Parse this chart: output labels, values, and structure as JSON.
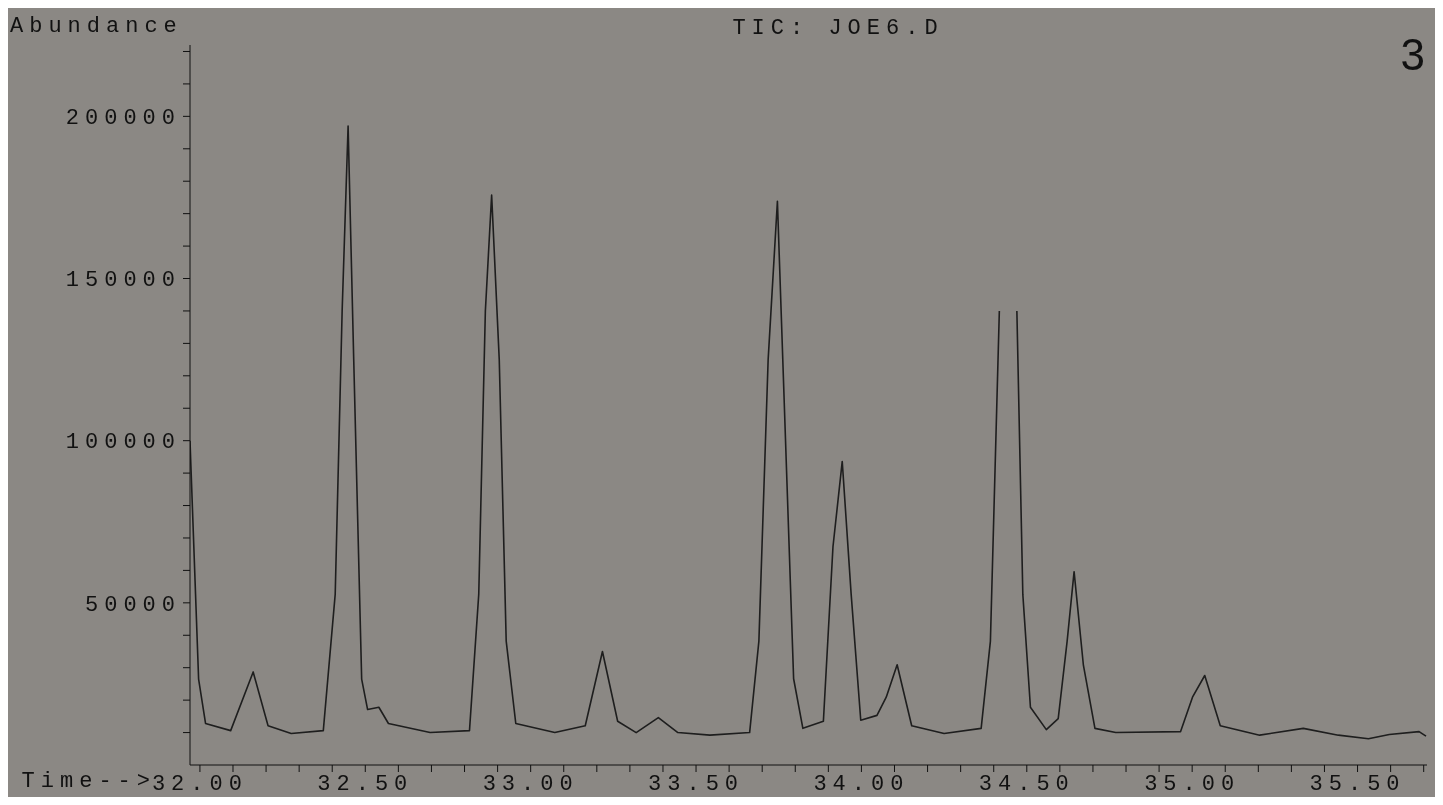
{
  "chart_data": {
    "type": "line",
    "title": "TIC: JOE6.D",
    "ylabel": "Abundance",
    "xlabel": "Time-->",
    "annotations": [
      "3"
    ],
    "color": "#1e1e1e",
    "marker": "none",
    "line_style": "solid",
    "x": [
      31.97,
      31.996,
      32.017,
      32.093,
      32.161,
      32.206,
      32.276,
      32.373,
      32.409,
      32.43,
      32.448,
      32.465,
      32.489,
      32.507,
      32.541,
      32.57,
      32.696,
      32.815,
      32.843,
      32.863,
      32.882,
      32.905,
      32.926,
      32.955,
      33.073,
      33.165,
      33.217,
      33.263,
      33.319,
      33.386,
      33.445,
      33.542,
      33.662,
      33.69,
      33.718,
      33.746,
      33.767,
      33.795,
      33.823,
      33.885,
      33.914,
      33.942,
      33.969,
      33.998,
      34.047,
      34.075,
      34.108,
      34.152,
      34.25,
      34.362,
      34.39,
      34.417,
      34.432,
      34.462,
      34.47,
      34.482,
      34.488,
      34.511,
      34.559,
      34.595,
      34.622,
      34.643,
      34.671,
      34.706,
      34.769,
      34.965,
      35.001,
      35.038,
      35.085,
      35.204,
      35.336,
      35.442,
      35.533,
      35.596,
      35.686,
      35.707
    ],
    "values": [
      100000,
      26500,
      12800,
      10600,
      28700,
      12100,
      9700,
      10600,
      52600,
      140000,
      197000,
      125000,
      26500,
      17100,
      17800,
      12800,
      10000,
      10600,
      52600,
      140000,
      175700,
      125000,
      38200,
      12800,
      10000,
      12100,
      35000,
      13500,
      10000,
      14600,
      10000,
      9200,
      10000,
      38200,
      125000,
      173800,
      110700,
      26600,
      11300,
      13500,
      67300,
      93600,
      52600,
      13800,
      15300,
      20900,
      30900,
      12100,
      9700,
      11300,
      38200,
      140000,
      null,
      null,
      140000,
      81700,
      52600,
      17800,
      10900,
      14300,
      38200,
      59600,
      30900,
      11300,
      10000,
      10300,
      20900,
      27600,
      12100,
      9200,
      11300,
      9200,
      8100,
      9400,
      10300,
      8900
    ],
    "xlim": [
      31.97,
      35.71
    ],
    "ylim": [
      0,
      222000
    ],
    "xticks": [
      {
        "value": 32,
        "label": "32.00"
      },
      {
        "value": 32.1,
        "label": null
      },
      {
        "value": 32.2,
        "label": null
      },
      {
        "value": 32.3,
        "label": null
      },
      {
        "value": 32.4,
        "label": null
      },
      {
        "value": 32.5,
        "label": "32.50"
      },
      {
        "value": 32.6,
        "label": null
      },
      {
        "value": 32.7,
        "label": null
      },
      {
        "value": 32.8,
        "label": null
      },
      {
        "value": 32.9,
        "label": null
      },
      {
        "value": 33,
        "label": "33.00"
      },
      {
        "value": 33.1,
        "label": null
      },
      {
        "value": 33.2,
        "label": null
      },
      {
        "value": 33.3,
        "label": null
      },
      {
        "value": 33.4,
        "label": null
      },
      {
        "value": 33.5,
        "label": "33.50"
      },
      {
        "value": 33.6,
        "label": null
      },
      {
        "value": 33.7,
        "label": null
      },
      {
        "value": 33.8,
        "label": null
      },
      {
        "value": 33.9,
        "label": null
      },
      {
        "value": 34,
        "label": "34.00"
      },
      {
        "value": 34.1,
        "label": null
      },
      {
        "value": 34.2,
        "label": null
      },
      {
        "value": 34.3,
        "label": null
      },
      {
        "value": 34.4,
        "label": null
      },
      {
        "value": 34.5,
        "label": "34.50"
      },
      {
        "value": 34.6,
        "label": null
      },
      {
        "value": 34.7,
        "label": null
      },
      {
        "value": 34.8,
        "label": null
      },
      {
        "value": 34.9,
        "label": null
      },
      {
        "value": 35,
        "label": "35.00"
      },
      {
        "value": 35.1,
        "label": null
      },
      {
        "value": 35.2,
        "label": null
      },
      {
        "value": 35.3,
        "label": null
      },
      {
        "value": 35.4,
        "label": null
      },
      {
        "value": 35.5,
        "label": "35.50"
      },
      {
        "value": 35.6,
        "label": null
      },
      {
        "value": 35.7,
        "label": null
      }
    ],
    "yticks": [
      {
        "value": 10000,
        "label": null
      },
      {
        "value": 20000,
        "label": null
      },
      {
        "value": 30000,
        "label": null
      },
      {
        "value": 40000,
        "label": null
      },
      50000,
      {
        "value": 60000,
        "label": null
      },
      {
        "value": 70000,
        "label": null
      },
      {
        "value": 80000,
        "label": null
      },
      {
        "value": 90000,
        "label": null
      },
      100000,
      {
        "value": 110000,
        "label": null
      },
      {
        "value": 120000,
        "label": null
      },
      {
        "value": 130000,
        "label": null
      },
      {
        "value": 140000,
        "label": null
      },
      150000,
      {
        "value": 160000,
        "label": null
      },
      {
        "value": 170000,
        "label": null
      },
      {
        "value": 180000,
        "label": null
      },
      {
        "value": 190000,
        "label": null
      },
      200000,
      {
        "value": 210000,
        "label": null
      },
      {
        "value": 220000,
        "label": null
      }
    ]
  }
}
